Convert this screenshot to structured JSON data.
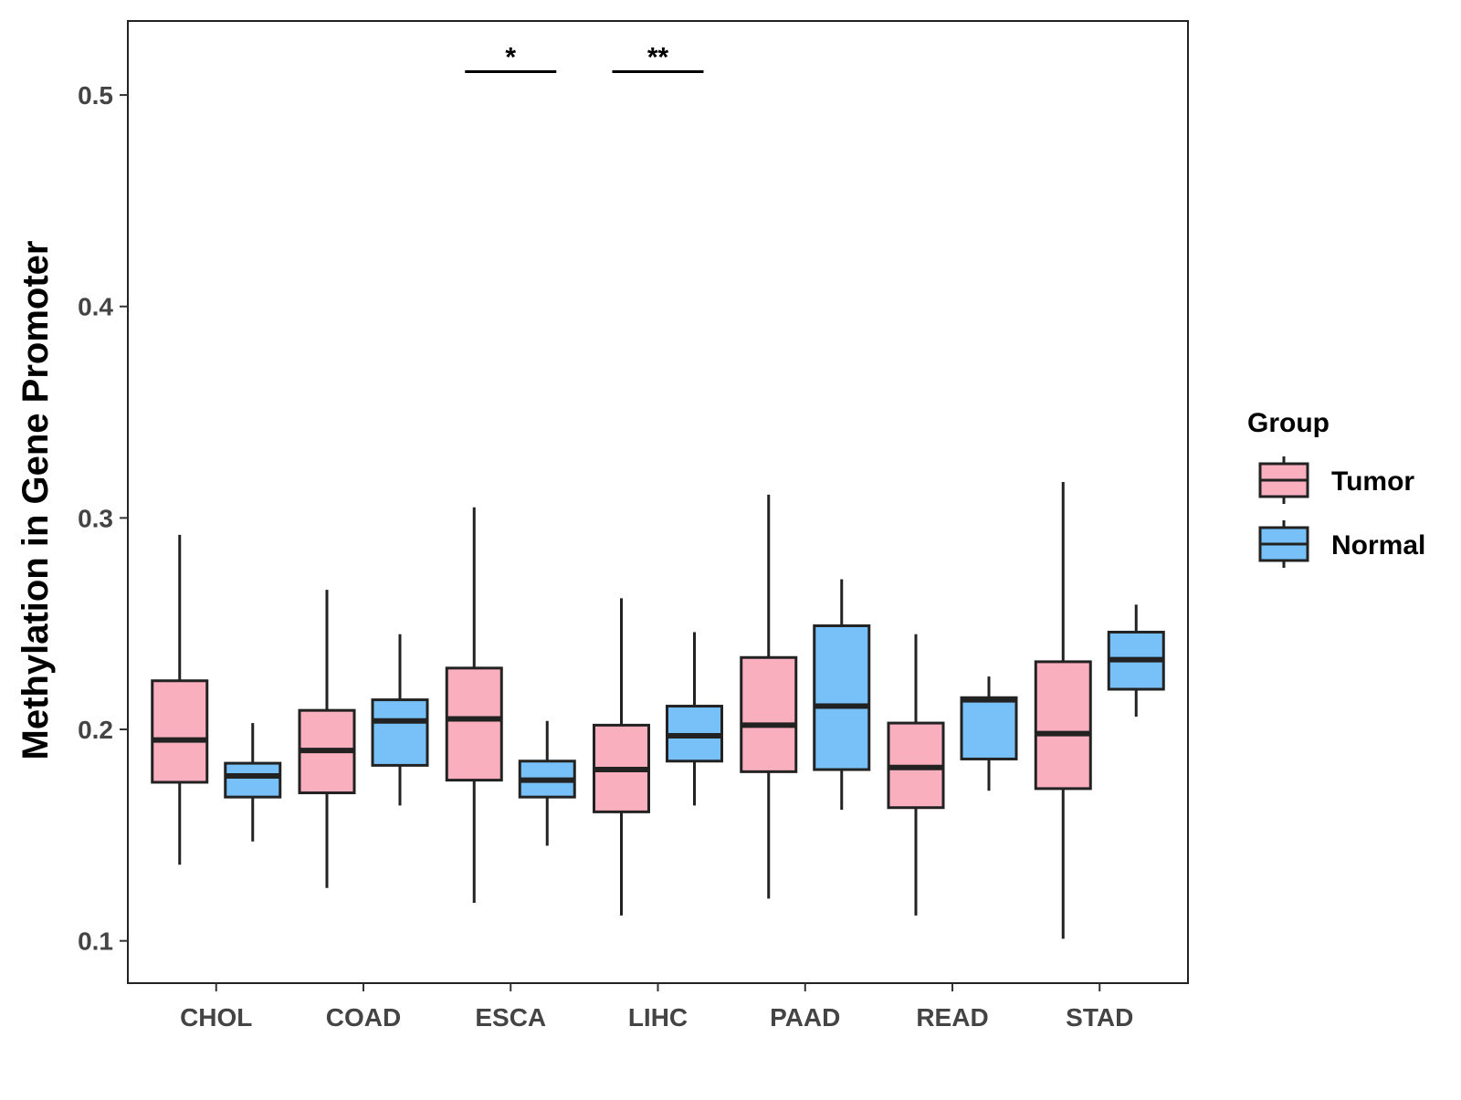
{
  "chart_data": {
    "type": "boxplot",
    "title": "",
    "xlabel": "",
    "ylabel": "Methylation in Gene Promoter",
    "ylim": [
      0.08,
      0.535
    ],
    "yticks": [
      0.1,
      0.2,
      0.3,
      0.4,
      0.5
    ],
    "ytick_labels": [
      "0.1",
      "0.2",
      "0.3",
      "0.4",
      "0.5"
    ],
    "categories": [
      "CHOL",
      "COAD",
      "ESCA",
      "LIHC",
      "PAAD",
      "READ",
      "STAD"
    ],
    "grid": false,
    "legend": {
      "title": "Group",
      "position": "right",
      "entries": [
        {
          "name": "Tumor",
          "color": "#FAAFBE"
        },
        {
          "name": "Normal",
          "color": "#77C1F8"
        }
      ]
    },
    "series": [
      {
        "name": "Tumor",
        "color": "#FAAFBE",
        "boxes": [
          {
            "category": "CHOL",
            "min": 0.136,
            "q1": 0.175,
            "median": 0.195,
            "q3": 0.223,
            "max": 0.292
          },
          {
            "category": "COAD",
            "min": 0.125,
            "q1": 0.17,
            "median": 0.19,
            "q3": 0.209,
            "max": 0.266
          },
          {
            "category": "ESCA",
            "min": 0.118,
            "q1": 0.176,
            "median": 0.205,
            "q3": 0.229,
            "max": 0.305
          },
          {
            "category": "LIHC",
            "min": 0.112,
            "q1": 0.161,
            "median": 0.181,
            "q3": 0.202,
            "max": 0.262
          },
          {
            "category": "PAAD",
            "min": 0.12,
            "q1": 0.18,
            "median": 0.202,
            "q3": 0.234,
            "max": 0.311
          },
          {
            "category": "READ",
            "min": 0.112,
            "q1": 0.163,
            "median": 0.182,
            "q3": 0.203,
            "max": 0.245
          },
          {
            "category": "STAD",
            "min": 0.101,
            "q1": 0.172,
            "median": 0.198,
            "q3": 0.232,
            "max": 0.317
          }
        ]
      },
      {
        "name": "Normal",
        "color": "#77C1F8",
        "boxes": [
          {
            "category": "CHOL",
            "min": 0.147,
            "q1": 0.168,
            "median": 0.178,
            "q3": 0.184,
            "max": 0.203
          },
          {
            "category": "COAD",
            "min": 0.164,
            "q1": 0.183,
            "median": 0.204,
            "q3": 0.214,
            "max": 0.245
          },
          {
            "category": "ESCA",
            "min": 0.145,
            "q1": 0.168,
            "median": 0.176,
            "q3": 0.185,
            "max": 0.204
          },
          {
            "category": "LIHC",
            "min": 0.164,
            "q1": 0.185,
            "median": 0.197,
            "q3": 0.211,
            "max": 0.246
          },
          {
            "category": "PAAD",
            "min": 0.162,
            "q1": 0.181,
            "median": 0.211,
            "q3": 0.249,
            "max": 0.271
          },
          {
            "category": "READ",
            "min": 0.171,
            "q1": 0.186,
            "median": 0.214,
            "q3": 0.215,
            "max": 0.225
          },
          {
            "category": "STAD",
            "min": 0.206,
            "q1": 0.219,
            "median": 0.233,
            "q3": 0.246,
            "max": 0.259
          }
        ]
      }
    ],
    "annotations": [
      {
        "category": "ESCA",
        "label": "*",
        "y": 0.505
      },
      {
        "category": "LIHC",
        "label": "**",
        "y": 0.505
      }
    ]
  }
}
